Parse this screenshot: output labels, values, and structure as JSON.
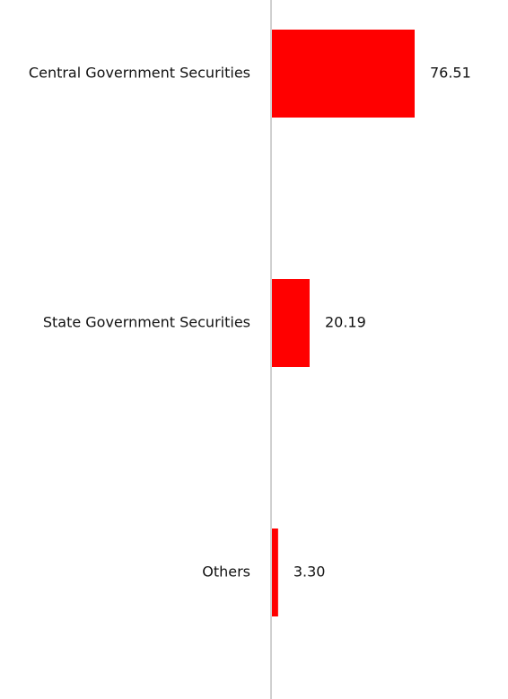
{
  "chart_data": {
    "type": "bar",
    "orientation": "horizontal",
    "categories": [
      "Central Government Securities",
      "State Government Securities",
      "Others"
    ],
    "values": [
      76.51,
      20.19,
      3.3
    ],
    "value_labels": [
      "76.51",
      "20.19",
      "3.30"
    ],
    "color": "#ff0000"
  }
}
